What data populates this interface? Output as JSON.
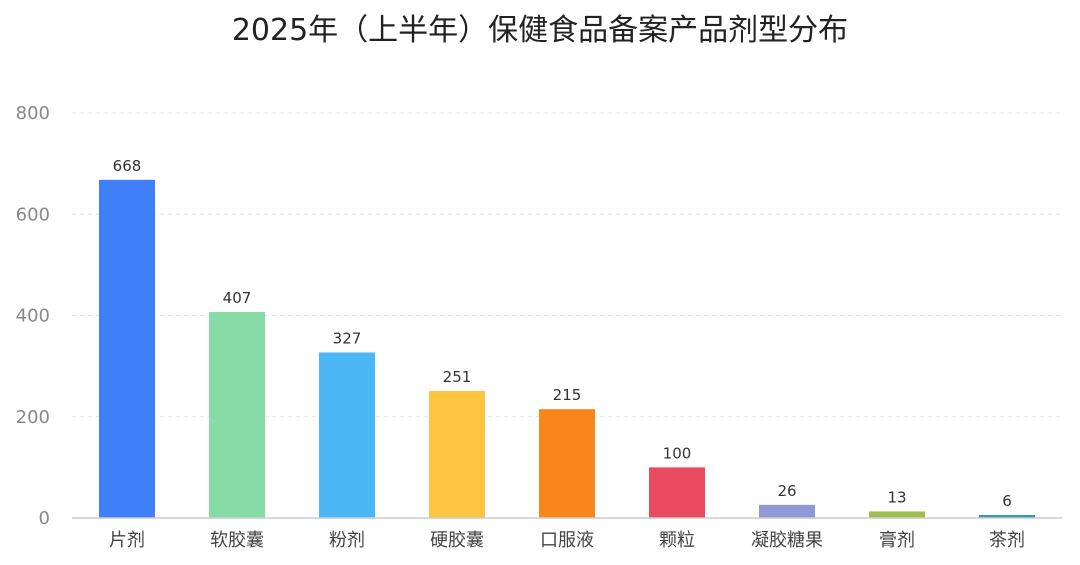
{
  "chart_data": {
    "type": "bar",
    "title": "2025年（上半年）保健食品备案产品剂型分布",
    "categories": [
      "片剂",
      "软胶囊",
      "粉剂",
      "硬胶囊",
      "口服液",
      "颗粒",
      "凝胶糖果",
      "膏剂",
      "茶剂"
    ],
    "values": [
      668,
      407,
      327,
      251,
      215,
      100,
      26,
      13,
      6
    ],
    "colors": [
      "#3f7ff7",
      "#86dba6",
      "#4bb8f5",
      "#ffc542",
      "#f9861a",
      "#e84a5f",
      "#8e99d6",
      "#9dbf4f",
      "#3a9aa5"
    ],
    "ylim": [
      0,
      800
    ],
    "yticks": [
      0,
      200,
      400,
      600,
      800
    ],
    "grid": true,
    "xlabel": "",
    "ylabel": ""
  }
}
